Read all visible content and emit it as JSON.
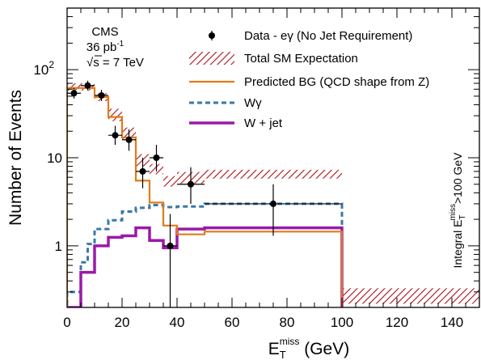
{
  "chart_data": {
    "type": "histogram",
    "xlabel_main": "E",
    "xlabel_sub": "T",
    "xlabel_sup": "miss",
    "xlabel_unit": " (GeV)",
    "ylabel": "Number of Events",
    "xlim": [
      0,
      150
    ],
    "ylim": [
      0.2,
      500
    ],
    "yscale": "log",
    "xticks": [
      0,
      20,
      40,
      60,
      80,
      100,
      120,
      140
    ],
    "yticks": [
      {
        "value": 1,
        "label": "1"
      },
      {
        "value": 10,
        "label": "10"
      },
      {
        "value": 100,
        "label_base": "10",
        "label_exp": "2"
      }
    ],
    "annotation": {
      "lines": [
        "CMS",
        "36 pb",
        "s = 7 TeV"
      ],
      "lumi_sup": "-1",
      "sqrt_symbol": "√"
    },
    "side_label": {
      "prefix": "Integral E",
      "sub": "T",
      "sup": "miss",
      "suffix": ">100 GeV"
    },
    "legend": {
      "position": "top-right",
      "entries": [
        {
          "key": "data",
          "label": "Data - eγ (No Jet Requirement)"
        },
        {
          "key": "total",
          "label": "Total SM Expectation"
        },
        {
          "key": "predbg",
          "label": "Predicted BG (QCD shape from Z)"
        },
        {
          "key": "wgamma",
          "label": "Wγ"
        },
        {
          "key": "wjet",
          "label": "W + jet"
        }
      ]
    },
    "colors": {
      "data": "#000000",
      "total": "#b0202a",
      "predbg": "#e07b1a",
      "wgamma": "#3a78a8",
      "wjet": "#9a1aa8"
    },
    "series": {
      "total_band": [
        {
          "x0": 0,
          "x1": 5,
          "lo": 58,
          "hi": 70
        },
        {
          "x0": 5,
          "x1": 10,
          "lo": 58,
          "hi": 70
        },
        {
          "x0": 10,
          "x1": 15,
          "lo": 44,
          "hi": 54
        },
        {
          "x0": 15,
          "x1": 20,
          "lo": 26,
          "hi": 36
        },
        {
          "x0": 20,
          "x1": 25,
          "lo": 16,
          "hi": 22
        },
        {
          "x0": 25,
          "x1": 30,
          "lo": 8,
          "hi": 11
        },
        {
          "x0": 30,
          "x1": 35,
          "lo": 6.5,
          "hi": 8.5
        },
        {
          "x0": 35,
          "x1": 40,
          "lo": 4.7,
          "hi": 6.2
        },
        {
          "x0": 40,
          "x1": 50,
          "lo": 5.1,
          "hi": 6.9
        },
        {
          "x0": 50,
          "x1": 100,
          "lo": 5.8,
          "hi": 7.3
        },
        {
          "x0": 100,
          "x1": 150,
          "lo": 0.22,
          "hi": 0.33
        }
      ],
      "predbg": [
        {
          "x0": 0,
          "x1": 5,
          "y": 62
        },
        {
          "x0": 5,
          "x1": 10,
          "y": 62
        },
        {
          "x0": 10,
          "x1": 15,
          "y": 49
        },
        {
          "x0": 15,
          "x1": 20,
          "y": 29
        },
        {
          "x0": 20,
          "x1": 25,
          "y": 17
        },
        {
          "x0": 25,
          "x1": 30,
          "y": 5.5
        },
        {
          "x0": 30,
          "x1": 35,
          "y": 3.1
        },
        {
          "x0": 35,
          "x1": 40,
          "y": 1.7
        },
        {
          "x0": 40,
          "x1": 50,
          "y": 1.35
        },
        {
          "x0": 50,
          "x1": 100,
          "y": 1.45
        },
        {
          "x0": 100,
          "x1": 150,
          "y": 0.1
        }
      ],
      "wgamma": [
        {
          "x0": 0,
          "x1": 5,
          "y": 0.3
        },
        {
          "x0": 5,
          "x1": 7.5,
          "y": 0.65
        },
        {
          "x0": 7.5,
          "x1": 10,
          "y": 1.05
        },
        {
          "x0": 10,
          "x1": 15,
          "y": 1.55
        },
        {
          "x0": 15,
          "x1": 20,
          "y": 1.95
        },
        {
          "x0": 20,
          "x1": 25,
          "y": 2.45
        },
        {
          "x0": 25,
          "x1": 30,
          "y": 2.7
        },
        {
          "x0": 30,
          "x1": 35,
          "y": 2.9
        },
        {
          "x0": 35,
          "x1": 40,
          "y": 2.75
        },
        {
          "x0": 40,
          "x1": 50,
          "y": 2.8
        },
        {
          "x0": 50,
          "x1": 100,
          "y": 3.0
        },
        {
          "x0": 100,
          "x1": 150,
          "y": 0.1
        }
      ],
      "wjet": [
        {
          "x0": 0,
          "x1": 5,
          "y": 0.2
        },
        {
          "x0": 5,
          "x1": 10,
          "y": 0.5
        },
        {
          "x0": 10,
          "x1": 15,
          "y": 1.0
        },
        {
          "x0": 15,
          "x1": 20,
          "y": 1.25
        },
        {
          "x0": 20,
          "x1": 25,
          "y": 1.3
        },
        {
          "x0": 25,
          "x1": 30,
          "y": 1.6
        },
        {
          "x0": 30,
          "x1": 35,
          "y": 1.15
        },
        {
          "x0": 35,
          "x1": 40,
          "y": 0.95
        },
        {
          "x0": 40,
          "x1": 50,
          "y": 1.55
        },
        {
          "x0": 50,
          "x1": 100,
          "y": 1.6
        },
        {
          "x0": 100,
          "x1": 150,
          "y": 0.1
        }
      ],
      "data": [
        {
          "x": 2.5,
          "y": 54,
          "xerr": 2.5,
          "ylo": 47,
          "yhi": 62
        },
        {
          "x": 7.5,
          "y": 66,
          "xerr": 2.5,
          "ylo": 58,
          "yhi": 75
        },
        {
          "x": 12.5,
          "y": 51,
          "xerr": 2.5,
          "ylo": 44,
          "yhi": 59
        },
        {
          "x": 17.5,
          "y": 18,
          "xerr": 2.5,
          "ylo": 14,
          "yhi": 23
        },
        {
          "x": 22.5,
          "y": 16,
          "xerr": 2.5,
          "ylo": 12,
          "yhi": 21
        },
        {
          "x": 27.5,
          "y": 7,
          "xerr": 2.5,
          "ylo": 4.5,
          "yhi": 10
        },
        {
          "x": 32.5,
          "y": 10,
          "xerr": 2.5,
          "ylo": 7,
          "yhi": 14
        },
        {
          "x": 37.5,
          "y": 1.0,
          "xerr": 2.5,
          "ylo": 0.2,
          "yhi": 2.3
        },
        {
          "x": 45,
          "y": 5,
          "xerr": 5,
          "ylo": 3.0,
          "yhi": 7.8
        },
        {
          "x": 75,
          "y": 3,
          "xerr": 25,
          "ylo": 1.3,
          "yhi": 5.0
        }
      ]
    }
  }
}
